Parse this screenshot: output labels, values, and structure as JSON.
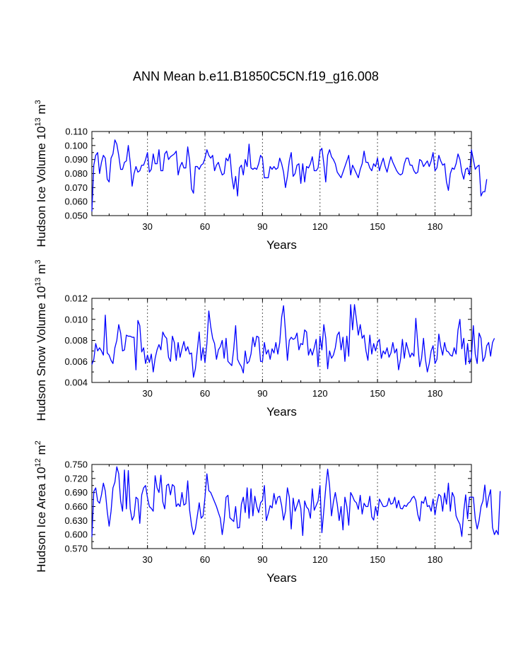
{
  "title": "ANN Mean b.e11.B1850C5CN.f19_g16.008",
  "chart_data": [
    {
      "type": "line",
      "ylabel": "Hudson Ice Volume 10",
      "ylabel_exp": "13",
      "ylabel_unit": " m",
      "ylabel_unit_exp": "3",
      "xlabel": "Years",
      "xlim": [
        1,
        199
      ],
      "ylim": [
        0.05,
        0.11
      ],
      "yticks": [
        0.05,
        0.06,
        0.07,
        0.08,
        0.09,
        0.1,
        0.11
      ],
      "ytick_labels": [
        "0.050",
        "0.060",
        "0.070",
        "0.080",
        "0.090",
        "0.100",
        "0.110"
      ],
      "xticks": [
        30,
        60,
        90,
        120,
        150,
        180
      ],
      "xtick_labels": [
        "30",
        "60",
        "90",
        "120",
        "150",
        "180"
      ],
      "series": [
        {
          "name": "Hudson Ice Volume",
          "color": "#0000ff",
          "values": [
            0.053,
            0.086,
            0.093,
            0.095,
            0.08,
            0.088,
            0.093,
            0.091,
            0.076,
            0.074,
            0.091,
            0.094,
            0.104,
            0.101,
            0.093,
            0.083,
            0.083,
            0.088,
            0.089,
            0.1,
            0.088,
            0.071,
            0.08,
            0.085,
            0.081,
            0.082,
            0.086,
            0.086,
            0.09,
            0.095,
            0.081,
            0.083,
            0.094,
            0.087,
            0.087,
            0.097,
            0.082,
            0.082,
            0.094,
            0.096,
            0.09,
            0.092,
            0.093,
            0.094,
            0.096,
            0.079,
            0.085,
            0.088,
            0.084,
            0.084,
            0.099,
            0.089,
            0.069,
            0.066,
            0.085,
            0.085,
            0.083,
            0.086,
            0.087,
            0.091,
            0.097,
            0.093,
            0.091,
            0.093,
            0.082,
            0.086,
            0.088,
            0.083,
            0.079,
            0.08,
            0.091,
            0.089,
            0.094,
            0.078,
            0.069,
            0.078,
            0.064,
            0.084,
            0.086,
            0.079,
            0.09,
            0.085,
            0.101,
            0.084,
            0.083,
            0.084,
            0.083,
            0.087,
            0.093,
            0.091,
            0.077,
            0.077,
            0.077,
            0.085,
            0.083,
            0.085,
            0.083,
            0.084,
            0.091,
            0.087,
            0.081,
            0.07,
            0.078,
            0.089,
            0.095,
            0.078,
            0.08,
            0.086,
            0.087,
            0.073,
            0.087,
            0.074,
            0.085,
            0.084,
            0.087,
            0.092,
            0.082,
            0.082,
            0.084,
            0.096,
            0.098,
            0.087,
            0.074,
            0.093,
            0.097,
            0.092,
            0.09,
            0.087,
            0.081,
            0.079,
            0.077,
            0.081,
            0.085,
            0.089,
            0.093,
            0.079,
            0.086,
            0.083,
            0.08,
            0.077,
            0.083,
            0.087,
            0.096,
            0.088,
            0.088,
            0.084,
            0.082,
            0.087,
            0.085,
            0.091,
            0.082,
            0.087,
            0.091,
            0.085,
            0.081,
            0.087,
            0.092,
            0.088,
            0.085,
            0.082,
            0.08,
            0.079,
            0.08,
            0.087,
            0.091,
            0.091,
            0.086,
            0.086,
            0.082,
            0.08,
            0.081,
            0.09,
            0.089,
            0.085,
            0.087,
            0.089,
            0.085,
            0.089,
            0.095,
            0.082,
            0.084,
            0.093,
            0.089,
            0.086,
            0.087,
            0.074,
            0.068,
            0.08,
            0.084,
            0.083,
            0.087,
            0.094,
            0.09,
            0.081,
            0.076,
            0.083,
            0.084,
            0.079,
            0.097,
            0.09,
            0.083,
            0.085,
            0.086,
            0.064,
            0.067,
            0.067,
            0.076
          ]
        }
      ]
    },
    {
      "type": "line",
      "ylabel": "Hudson Snow Volume 10",
      "ylabel_exp": "13",
      "ylabel_unit": " m",
      "ylabel_unit_exp": "3",
      "xlabel": "Years",
      "xlim": [
        1,
        199
      ],
      "ylim": [
        0.004,
        0.012
      ],
      "yticks": [
        0.004,
        0.006,
        0.008,
        0.01,
        0.012
      ],
      "ytick_labels": [
        "0.004",
        "0.006",
        "0.008",
        "0.010",
        "0.012"
      ],
      "xticks": [
        30,
        60,
        90,
        120,
        150,
        180
      ],
      "xtick_labels": [
        "30",
        "60",
        "90",
        "120",
        "150",
        "180"
      ],
      "series": [
        {
          "name": "Hudson Snow Volume",
          "color": "#0000ff",
          "values": [
            0.0057,
            0.0062,
            0.0077,
            0.007,
            0.0073,
            0.007,
            0.0066,
            0.0104,
            0.0068,
            0.0066,
            0.0061,
            0.0058,
            0.0073,
            0.008,
            0.0095,
            0.0087,
            0.007,
            0.0071,
            0.0085,
            0.0084,
            0.0084,
            0.0083,
            0.0083,
            0.0052,
            0.0099,
            0.0094,
            0.0069,
            0.0073,
            0.0058,
            0.0066,
            0.0059,
            0.0067,
            0.005,
            0.0063,
            0.0071,
            0.0076,
            0.0071,
            0.0088,
            0.0084,
            0.0082,
            0.0064,
            0.006,
            0.0084,
            0.0078,
            0.0061,
            0.0078,
            0.0064,
            0.0072,
            0.0079,
            0.007,
            0.0074,
            0.0067,
            0.0068,
            0.0045,
            0.0053,
            0.0071,
            0.0088,
            0.0061,
            0.0073,
            0.0059,
            0.0077,
            0.0108,
            0.0093,
            0.0082,
            0.0077,
            0.0062,
            0.0071,
            0.0074,
            0.008,
            0.0063,
            0.0082,
            0.006,
            0.0058,
            0.0056,
            0.0072,
            0.0094,
            0.0062,
            0.0058,
            0.0055,
            0.0049,
            0.007,
            0.0058,
            0.006,
            0.0067,
            0.0083,
            0.0074,
            0.0084,
            0.0083,
            0.006,
            0.006,
            0.0078,
            0.0067,
            0.0071,
            0.0062,
            0.0072,
            0.0068,
            0.0078,
            0.0067,
            0.0078,
            0.0102,
            0.0113,
            0.0088,
            0.0061,
            0.008,
            0.0083,
            0.0081,
            0.0082,
            0.0087,
            0.0071,
            0.0077,
            0.0076,
            0.009,
            0.0088,
            0.0066,
            0.0072,
            0.0066,
            0.0073,
            0.0081,
            0.0055,
            0.0084,
            0.0071,
            0.0095,
            0.0082,
            0.0053,
            0.007,
            0.0063,
            0.0066,
            0.0073,
            0.0085,
            0.0088,
            0.0071,
            0.0083,
            0.006,
            0.0084,
            0.0065,
            0.0114,
            0.009,
            0.0114,
            0.01,
            0.0085,
            0.0095,
            0.0082,
            0.0085,
            0.007,
            0.0061,
            0.0085,
            0.0067,
            0.0077,
            0.007,
            0.0078,
            0.0081,
            0.0063,
            0.007,
            0.0067,
            0.0073,
            0.0064,
            0.0068,
            0.0078,
            0.0068,
            0.0072,
            0.0052,
            0.0062,
            0.0081,
            0.0063,
            0.0078,
            0.0071,
            0.0064,
            0.0068,
            0.0065,
            0.0101,
            0.0077,
            0.0055,
            0.0063,
            0.0082,
            0.0062,
            0.005,
            0.0058,
            0.007,
            0.0075,
            0.0058,
            0.0062,
            0.0086,
            0.0074,
            0.0066,
            0.0078,
            0.007,
            0.0069,
            0.0066,
            0.0065,
            0.0073,
            0.0067,
            0.009,
            0.01,
            0.0072,
            0.0082,
            0.0057,
            0.0077,
            0.0058,
            0.0064,
            0.0094,
            0.0067,
            0.0058,
            0.0087,
            0.0082,
            0.006,
            0.0064,
            0.0075,
            0.0078,
            0.0065,
            0.0078,
            0.0082
          ]
        }
      ]
    },
    {
      "type": "line",
      "ylabel": "Hudson Ice Area 10",
      "ylabel_exp": "12",
      "ylabel_unit": " m",
      "ylabel_unit_exp": "2",
      "xlabel": "Years",
      "xlim": [
        1,
        199
      ],
      "ylim": [
        0.57,
        0.75
      ],
      "yticks": [
        0.57,
        0.6,
        0.63,
        0.66,
        0.69,
        0.72,
        0.75
      ],
      "ytick_labels": [
        "0.570",
        "0.600",
        "0.630",
        "0.660",
        "0.690",
        "0.720",
        "0.750"
      ],
      "xticks": [
        30,
        60,
        90,
        120,
        150,
        180
      ],
      "xtick_labels": [
        "30",
        "60",
        "90",
        "120",
        "150",
        "180"
      ],
      "series": [
        {
          "name": "Hudson Ice Area",
          "color": "#0000ff",
          "values": [
            0.595,
            0.692,
            0.7,
            0.672,
            0.667,
            0.685,
            0.71,
            0.693,
            0.65,
            0.618,
            0.65,
            0.7,
            0.712,
            0.745,
            0.73,
            0.672,
            0.65,
            0.738,
            0.655,
            0.737,
            0.655,
            0.631,
            0.64,
            0.68,
            0.676,
            0.624,
            0.685,
            0.7,
            0.705,
            0.679,
            0.66,
            0.656,
            0.65,
            0.726,
            0.7,
            0.69,
            0.727,
            0.67,
            0.655,
            0.705,
            0.708,
            0.685,
            0.707,
            0.703,
            0.66,
            0.666,
            0.66,
            0.69,
            0.663,
            0.666,
            0.715,
            0.652,
            0.62,
            0.6,
            0.612,
            0.64,
            0.668,
            0.635,
            0.64,
            0.68,
            0.73,
            0.694,
            0.69,
            0.68,
            0.67,
            0.66,
            0.647,
            0.635,
            0.6,
            0.63,
            0.68,
            0.684,
            0.636,
            0.632,
            0.628,
            0.66,
            0.614,
            0.615,
            0.665,
            0.68,
            0.647,
            0.7,
            0.635,
            0.698,
            0.64,
            0.682,
            0.66,
            0.647,
            0.668,
            0.673,
            0.705,
            0.63,
            0.645,
            0.662,
            0.657,
            0.688,
            0.665,
            0.68,
            0.682,
            0.662,
            0.631,
            0.65,
            0.7,
            0.68,
            0.612,
            0.678,
            0.65,
            0.662,
            0.675,
            0.656,
            0.598,
            0.672,
            0.659,
            0.654,
            0.635,
            0.698,
            0.652,
            0.662,
            0.672,
            0.705,
            0.604,
            0.652,
            0.7,
            0.74,
            0.705,
            0.64,
            0.67,
            0.69,
            0.665,
            0.63,
            0.66,
            0.61,
            0.68,
            0.66,
            0.62,
            0.69,
            0.682,
            0.672,
            0.668,
            0.654,
            0.684,
            0.644,
            0.667,
            0.66,
            0.66,
            0.682,
            0.638,
            0.631,
            0.66,
            0.64,
            0.676,
            0.668,
            0.66,
            0.66,
            0.662,
            0.678,
            0.665,
            0.667,
            0.68,
            0.657,
            0.673,
            0.656,
            0.655,
            0.663,
            0.66,
            0.667,
            0.67,
            0.678,
            0.682,
            0.673,
            0.643,
            0.629,
            0.671,
            0.667,
            0.681,
            0.66,
            0.662,
            0.65,
            0.676,
            0.642,
            0.668,
            0.686,
            0.682,
            0.65,
            0.689,
            0.665,
            0.71,
            0.65,
            0.69,
            0.68,
            0.64,
            0.63,
            0.622,
            0.596,
            0.65,
            0.685,
            0.634,
            0.68,
            0.68,
            0.68,
            0.634,
            0.612,
            0.63,
            0.66,
            0.672,
            0.706,
            0.658,
            0.68,
            0.696,
            0.615,
            0.6,
            0.609,
            0.6,
            0.693
          ]
        }
      ]
    }
  ]
}
